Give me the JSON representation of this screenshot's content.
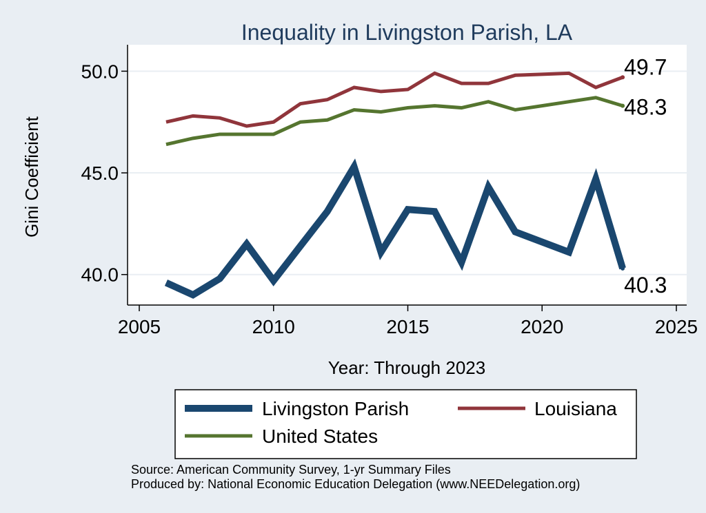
{
  "chart_data": {
    "type": "line",
    "title": "Inequality in Livingston Parish, LA",
    "xlabel": "Year: Through 2023",
    "ylabel": "Gini Coefficient",
    "xlim": [
      2005,
      2025
    ],
    "ylim": [
      38.5,
      51.3
    ],
    "xticks": [
      2005,
      2010,
      2015,
      2020,
      2025
    ],
    "xtick_labels": [
      "2005",
      "2010",
      "2015",
      "2020",
      "2025"
    ],
    "yticks": [
      40,
      45,
      50
    ],
    "ytick_labels": [
      "40.0",
      "45.0",
      "50.0"
    ],
    "x": [
      2006,
      2007,
      2008,
      2009,
      2010,
      2011,
      2012,
      2013,
      2014,
      2015,
      2016,
      2017,
      2018,
      2019,
      2020,
      2021,
      2022,
      2023
    ],
    "series": [
      {
        "name": "Livingston Parish",
        "color": "#1a476f",
        "values": [
          39.6,
          39.0,
          39.8,
          41.5,
          39.7,
          41.4,
          43.1,
          45.3,
          41.1,
          43.2,
          43.1,
          40.6,
          44.3,
          42.1,
          41.6,
          41.1,
          44.7,
          40.3
        ],
        "end_label": "40.3"
      },
      {
        "name": "Louisiana",
        "color": "#90353b",
        "values": [
          47.5,
          47.8,
          47.7,
          47.3,
          47.5,
          48.4,
          48.6,
          49.2,
          49.0,
          49.1,
          49.9,
          49.4,
          49.4,
          49.8,
          49.85,
          49.9,
          49.2,
          49.7
        ],
        "end_label": "49.7"
      },
      {
        "name": "United States",
        "color": "#55752f",
        "values": [
          46.4,
          46.7,
          46.9,
          46.9,
          46.9,
          47.5,
          47.6,
          48.1,
          48.0,
          48.2,
          48.3,
          48.2,
          48.5,
          48.1,
          48.3,
          48.5,
          48.7,
          48.3
        ],
        "end_label": "48.3"
      }
    ],
    "legend": {
      "position": "bottom",
      "entries": [
        "Livingston Parish",
        "Louisiana",
        "United States"
      ]
    },
    "notes": [
      "Source: American Community Survey, 1-yr Summary Files",
      "Produced by: National Economic Education Delegation (www.NEEDelegation.org)"
    ]
  },
  "colors": {
    "background": "#e9eef3",
    "plot_background": "#ffffff",
    "grid": "#e9eef3",
    "title": "#1f3b5c"
  }
}
